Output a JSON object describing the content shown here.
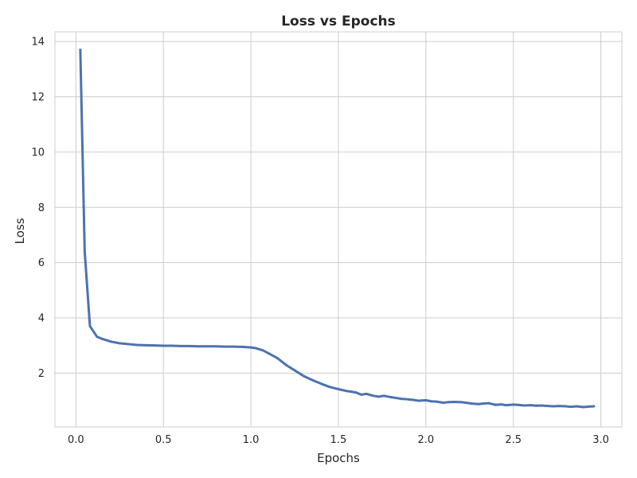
{
  "chart_data": {
    "type": "line",
    "title": "Loss vs Epochs",
    "xlabel": "Epochs",
    "ylabel": "Loss",
    "xlim": [
      -0.12,
      3.12
    ],
    "ylim": [
      0.05,
      14.35
    ],
    "xticks": [
      0.0,
      0.5,
      1.0,
      1.5,
      2.0,
      2.5,
      3.0
    ],
    "xtick_labels": [
      "0.0",
      "0.5",
      "1.0",
      "1.5",
      "2.0",
      "2.5",
      "3.0"
    ],
    "yticks": [
      2,
      4,
      6,
      8,
      10,
      12,
      14
    ],
    "ytick_labels": [
      "2",
      "4",
      "6",
      "8",
      "10",
      "12",
      "14"
    ],
    "grid": true,
    "line_color": "#4c72b0",
    "grid_color": "#cccccc",
    "series": [
      {
        "x": [
          0.025,
          0.05,
          0.08,
          0.12,
          0.15,
          0.2,
          0.25,
          0.3,
          0.35,
          0.4,
          0.45,
          0.5,
          0.55,
          0.6,
          0.65,
          0.7,
          0.75,
          0.8,
          0.85,
          0.9,
          0.95,
          1.0,
          1.03,
          1.07,
          1.1,
          1.15,
          1.2,
          1.25,
          1.3,
          1.35,
          1.4,
          1.45,
          1.5,
          1.55,
          1.6,
          1.63,
          1.66,
          1.7,
          1.73,
          1.76,
          1.8,
          1.83,
          1.86,
          1.9,
          1.93,
          1.96,
          2.0,
          2.03,
          2.06,
          2.1,
          2.13,
          2.16,
          2.2,
          2.23,
          2.26,
          2.3,
          2.33,
          2.36,
          2.4,
          2.43,
          2.46,
          2.5,
          2.53,
          2.56,
          2.6,
          2.63,
          2.66,
          2.7,
          2.73,
          2.76,
          2.8,
          2.83,
          2.86,
          2.9,
          2.93,
          2.96
        ],
        "y": [
          13.7,
          6.4,
          3.7,
          3.32,
          3.24,
          3.14,
          3.08,
          3.05,
          3.02,
          3.01,
          3.0,
          2.99,
          2.99,
          2.98,
          2.98,
          2.97,
          2.97,
          2.97,
          2.96,
          2.96,
          2.95,
          2.93,
          2.9,
          2.82,
          2.72,
          2.55,
          2.3,
          2.1,
          1.9,
          1.75,
          1.62,
          1.5,
          1.42,
          1.35,
          1.3,
          1.22,
          1.25,
          1.18,
          1.15,
          1.18,
          1.13,
          1.1,
          1.07,
          1.05,
          1.03,
          1.0,
          1.02,
          0.98,
          0.97,
          0.93,
          0.95,
          0.96,
          0.95,
          0.93,
          0.9,
          0.88,
          0.9,
          0.91,
          0.85,
          0.87,
          0.84,
          0.86,
          0.85,
          0.83,
          0.84,
          0.82,
          0.83,
          0.81,
          0.8,
          0.81,
          0.8,
          0.78,
          0.8,
          0.77,
          0.79,
          0.8
        ]
      }
    ]
  }
}
